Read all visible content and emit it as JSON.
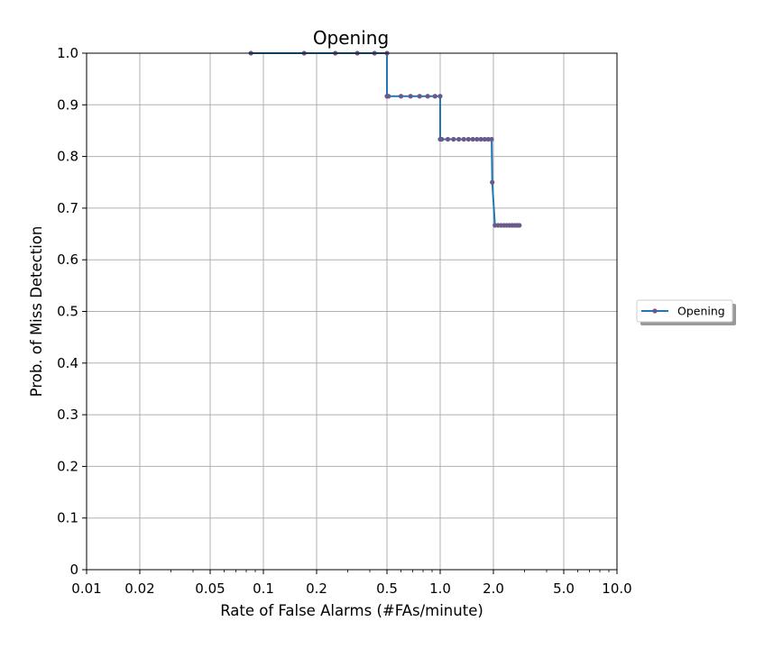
{
  "chart_data": {
    "type": "line",
    "title": "Opening",
    "xlabel": "Rate of False Alarms (#FAs/minute)",
    "ylabel": "Prob. of Miss Detection",
    "x_scale": "log",
    "xlim": [
      0.01,
      10.0
    ],
    "ylim": [
      0,
      1.0
    ],
    "x_ticks": [
      0.01,
      0.02,
      0.05,
      0.1,
      0.2,
      0.5,
      1.0,
      2.0,
      5.0,
      10.0
    ],
    "x_tick_labels": [
      "0.01",
      "0.02",
      "0.05",
      "0.1",
      "0.2",
      "0.5",
      "1.0",
      "2.0",
      "5.0",
      "10.0"
    ],
    "y_ticks": [
      0,
      0.1,
      0.2,
      0.3,
      0.4,
      0.5,
      0.6,
      0.7,
      0.8,
      0.9,
      1.0
    ],
    "y_tick_labels": [
      "0",
      "0.1",
      "0.2",
      "0.3",
      "0.4",
      "0.5",
      "0.6",
      "0.7",
      "0.8",
      "0.9",
      "1.0"
    ],
    "grid": true,
    "legend_position": "right",
    "series": [
      {
        "name": "Opening",
        "line_color": "#1f77b4",
        "marker_color": "#6a5a8c",
        "x": [
          0.085,
          0.17,
          0.255,
          0.34,
          0.425,
          0.5,
          0.5,
          0.51,
          0.6,
          0.68,
          0.765,
          0.85,
          0.935,
          1.0,
          1.0,
          1.02,
          1.105,
          1.19,
          1.275,
          1.36,
          1.445,
          1.53,
          1.615,
          1.7,
          1.785,
          1.87,
          1.955,
          1.97,
          2.04,
          2.125,
          2.21,
          2.295,
          2.38,
          2.465,
          2.55,
          2.635,
          2.72,
          2.805
        ],
        "y": [
          1.0,
          1.0,
          1.0,
          1.0,
          1.0,
          1.0,
          0.9167,
          0.9167,
          0.9167,
          0.9167,
          0.9167,
          0.9167,
          0.9167,
          0.9167,
          0.8333,
          0.8333,
          0.8333,
          0.8333,
          0.8333,
          0.8333,
          0.8333,
          0.8333,
          0.8333,
          0.8333,
          0.8333,
          0.8333,
          0.8333,
          0.75,
          0.6667,
          0.6667,
          0.6667,
          0.6667,
          0.6667,
          0.6667,
          0.6667,
          0.6667,
          0.6667,
          0.6667
        ]
      }
    ]
  }
}
